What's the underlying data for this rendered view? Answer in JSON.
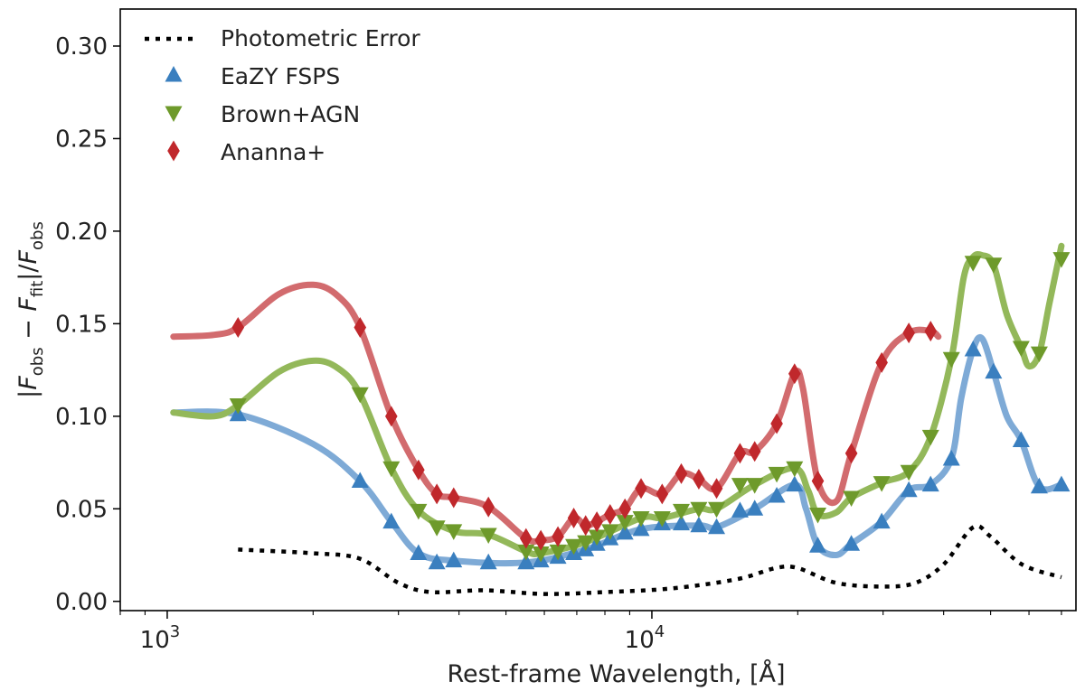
{
  "chart_data": {
    "type": "line",
    "title": "",
    "xlabel": "Rest-frame Wavelength, [Å]",
    "ylabel": "|F_obs − F_fit|/F_obs",
    "xscale": "log",
    "xlim": [
      800,
      75000
    ],
    "ylim": [
      -0.005,
      0.32
    ],
    "x_ticks": [
      {
        "value": 1000,
        "base": "10",
        "exp": "3"
      },
      {
        "value": 10000,
        "base": "10",
        "exp": "4"
      }
    ],
    "y_ticks": [
      {
        "value": 0.0,
        "label": "0.00"
      },
      {
        "value": 0.05,
        "label": "0.05"
      },
      {
        "value": 0.1,
        "label": "0.10"
      },
      {
        "value": 0.15,
        "label": "0.15"
      },
      {
        "value": 0.2,
        "label": "0.20"
      },
      {
        "value": 0.25,
        "label": "0.25"
      },
      {
        "value": 0.3,
        "label": "0.30"
      }
    ],
    "grid": false,
    "legend_position": "top-left",
    "series": [
      {
        "name": "Photometric Error",
        "color": "#000000",
        "style": "dotted",
        "markers": [],
        "curve": [
          [
            1400,
            0.028
          ],
          [
            2000,
            0.026
          ],
          [
            2500,
            0.023
          ],
          [
            3000,
            0.01
          ],
          [
            3500,
            0.005
          ],
          [
            4500,
            0.006
          ],
          [
            6000,
            0.004
          ],
          [
            8000,
            0.005
          ],
          [
            11000,
            0.007
          ],
          [
            15000,
            0.012
          ],
          [
            18000,
            0.018
          ],
          [
            20000,
            0.018
          ],
          [
            24000,
            0.01
          ],
          [
            30000,
            0.008
          ],
          [
            35000,
            0.01
          ],
          [
            40000,
            0.02
          ],
          [
            46000,
            0.04
          ],
          [
            50000,
            0.035
          ],
          [
            58000,
            0.02
          ],
          [
            70000,
            0.013
          ]
        ]
      },
      {
        "name": "EaZY FSPS",
        "color": "#3a7fbf",
        "line_color": "#7eaad6",
        "marker": "triangle-up",
        "markers": [
          [
            1400,
            0.101
          ],
          [
            2500,
            0.065
          ],
          [
            2900,
            0.043
          ],
          [
            3300,
            0.026
          ],
          [
            3600,
            0.021
          ],
          [
            3900,
            0.022
          ],
          [
            4600,
            0.021
          ],
          [
            5500,
            0.021
          ],
          [
            5900,
            0.022
          ],
          [
            6400,
            0.024
          ],
          [
            6900,
            0.026
          ],
          [
            7300,
            0.028
          ],
          [
            7700,
            0.031
          ],
          [
            8200,
            0.034
          ],
          [
            8800,
            0.037
          ],
          [
            9500,
            0.039
          ],
          [
            10500,
            0.042
          ],
          [
            11500,
            0.042
          ],
          [
            12500,
            0.041
          ],
          [
            13600,
            0.04
          ],
          [
            15200,
            0.049
          ],
          [
            16300,
            0.05
          ],
          [
            18100,
            0.057
          ],
          [
            19700,
            0.063
          ],
          [
            22000,
            0.03
          ],
          [
            25800,
            0.031
          ],
          [
            29800,
            0.043
          ],
          [
            33900,
            0.06
          ],
          [
            37600,
            0.063
          ],
          [
            41500,
            0.077
          ],
          [
            46000,
            0.136
          ],
          [
            50700,
            0.124
          ],
          [
            57800,
            0.087
          ],
          [
            63000,
            0.062
          ],
          [
            70000,
            0.063
          ]
        ],
        "curve": [
          [
            1030,
            0.102
          ],
          [
            1400,
            0.101
          ],
          [
            2000,
            0.085
          ],
          [
            2500,
            0.065
          ],
          [
            2900,
            0.043
          ],
          [
            3300,
            0.026
          ],
          [
            3900,
            0.022
          ],
          [
            5500,
            0.021
          ],
          [
            7300,
            0.028
          ],
          [
            9500,
            0.039
          ],
          [
            12500,
            0.041
          ],
          [
            13600,
            0.04
          ],
          [
            16300,
            0.05
          ],
          [
            19700,
            0.063
          ],
          [
            20800,
            0.05
          ],
          [
            22000,
            0.03
          ],
          [
            24000,
            0.025
          ],
          [
            25800,
            0.031
          ],
          [
            29800,
            0.043
          ],
          [
            33900,
            0.06
          ],
          [
            37600,
            0.063
          ],
          [
            41500,
            0.077
          ],
          [
            43500,
            0.11
          ],
          [
            46000,
            0.136
          ],
          [
            48000,
            0.142
          ],
          [
            50700,
            0.124
          ],
          [
            54000,
            0.1
          ],
          [
            57800,
            0.087
          ],
          [
            63000,
            0.062
          ],
          [
            70000,
            0.063
          ]
        ]
      },
      {
        "name": "Brown+AGN",
        "color": "#6e9a2b",
        "line_color": "#93b85a",
        "marker": "triangle-down",
        "markers": [
          [
            1400,
            0.106
          ],
          [
            2500,
            0.112
          ],
          [
            2900,
            0.072
          ],
          [
            3300,
            0.049
          ],
          [
            3600,
            0.04
          ],
          [
            3900,
            0.038
          ],
          [
            4600,
            0.036
          ],
          [
            5500,
            0.027
          ],
          [
            5900,
            0.026
          ],
          [
            6400,
            0.027
          ],
          [
            6900,
            0.03
          ],
          [
            7300,
            0.032
          ],
          [
            7700,
            0.035
          ],
          [
            8200,
            0.038
          ],
          [
            8800,
            0.043
          ],
          [
            9500,
            0.045
          ],
          [
            10500,
            0.045
          ],
          [
            11500,
            0.049
          ],
          [
            12500,
            0.05
          ],
          [
            13600,
            0.05
          ],
          [
            15200,
            0.063
          ],
          [
            16300,
            0.063
          ],
          [
            18100,
            0.069
          ],
          [
            19700,
            0.072
          ],
          [
            22000,
            0.047
          ],
          [
            25800,
            0.056
          ],
          [
            29800,
            0.064
          ],
          [
            33900,
            0.07
          ],
          [
            37600,
            0.089
          ],
          [
            41500,
            0.131
          ],
          [
            46000,
            0.183
          ],
          [
            50700,
            0.182
          ],
          [
            57800,
            0.137
          ],
          [
            63000,
            0.134
          ],
          [
            70000,
            0.185
          ]
        ],
        "curve": [
          [
            1030,
            0.102
          ],
          [
            1250,
            0.1
          ],
          [
            1400,
            0.106
          ],
          [
            1700,
            0.124
          ],
          [
            2000,
            0.13
          ],
          [
            2250,
            0.126
          ],
          [
            2500,
            0.112
          ],
          [
            2900,
            0.072
          ],
          [
            3300,
            0.049
          ],
          [
            3900,
            0.038
          ],
          [
            4600,
            0.036
          ],
          [
            5500,
            0.027
          ],
          [
            5900,
            0.026
          ],
          [
            7300,
            0.032
          ],
          [
            9500,
            0.045
          ],
          [
            10500,
            0.045
          ],
          [
            12500,
            0.05
          ],
          [
            13600,
            0.05
          ],
          [
            16300,
            0.063
          ],
          [
            19700,
            0.072
          ],
          [
            21000,
            0.06
          ],
          [
            22000,
            0.047
          ],
          [
            24000,
            0.048
          ],
          [
            25800,
            0.056
          ],
          [
            29800,
            0.064
          ],
          [
            33900,
            0.07
          ],
          [
            37600,
            0.089
          ],
          [
            41500,
            0.131
          ],
          [
            44000,
            0.175
          ],
          [
            46000,
            0.186
          ],
          [
            48000,
            0.187
          ],
          [
            50700,
            0.182
          ],
          [
            54000,
            0.155
          ],
          [
            57800,
            0.137
          ],
          [
            60000,
            0.127
          ],
          [
            63000,
            0.134
          ],
          [
            66000,
            0.16
          ],
          [
            70000,
            0.192
          ]
        ]
      },
      {
        "name": "Ananna+",
        "color": "#c0282c",
        "line_color": "#d26b6e",
        "marker": "diamond",
        "markers": [
          [
            1400,
            0.148
          ],
          [
            2500,
            0.148
          ],
          [
            2900,
            0.1
          ],
          [
            3300,
            0.071
          ],
          [
            3600,
            0.058
          ],
          [
            3900,
            0.056
          ],
          [
            4600,
            0.051
          ],
          [
            5500,
            0.034
          ],
          [
            5900,
            0.033
          ],
          [
            6400,
            0.035
          ],
          [
            6900,
            0.045
          ],
          [
            7300,
            0.041
          ],
          [
            7700,
            0.043
          ],
          [
            8200,
            0.047
          ],
          [
            8800,
            0.05
          ],
          [
            9500,
            0.061
          ],
          [
            10500,
            0.058
          ],
          [
            11500,
            0.069
          ],
          [
            12500,
            0.066
          ],
          [
            13600,
            0.061
          ],
          [
            15200,
            0.08
          ],
          [
            16300,
            0.081
          ],
          [
            18100,
            0.096
          ],
          [
            19700,
            0.123
          ],
          [
            22000,
            0.065
          ],
          [
            25800,
            0.08
          ],
          [
            29800,
            0.129
          ],
          [
            33900,
            0.145
          ],
          [
            37600,
            0.146
          ]
        ],
        "curve": [
          [
            1030,
            0.143
          ],
          [
            1250,
            0.144
          ],
          [
            1400,
            0.148
          ],
          [
            1700,
            0.166
          ],
          [
            2000,
            0.171
          ],
          [
            2250,
            0.165
          ],
          [
            2500,
            0.148
          ],
          [
            2900,
            0.1
          ],
          [
            3300,
            0.071
          ],
          [
            3600,
            0.058
          ],
          [
            3900,
            0.056
          ],
          [
            4600,
            0.051
          ],
          [
            5500,
            0.034
          ],
          [
            5900,
            0.033
          ],
          [
            6400,
            0.035
          ],
          [
            6900,
            0.045
          ],
          [
            7300,
            0.041
          ],
          [
            7700,
            0.043
          ],
          [
            8200,
            0.047
          ],
          [
            8800,
            0.05
          ],
          [
            9500,
            0.061
          ],
          [
            10500,
            0.058
          ],
          [
            11500,
            0.069
          ],
          [
            12500,
            0.066
          ],
          [
            13600,
            0.061
          ],
          [
            15200,
            0.08
          ],
          [
            16300,
            0.081
          ],
          [
            18100,
            0.096
          ],
          [
            19700,
            0.123
          ],
          [
            20500,
            0.115
          ],
          [
            22000,
            0.065
          ],
          [
            24000,
            0.054
          ],
          [
            25800,
            0.08
          ],
          [
            29800,
            0.129
          ],
          [
            33900,
            0.145
          ],
          [
            37600,
            0.146
          ],
          [
            39000,
            0.143
          ]
        ]
      }
    ]
  }
}
